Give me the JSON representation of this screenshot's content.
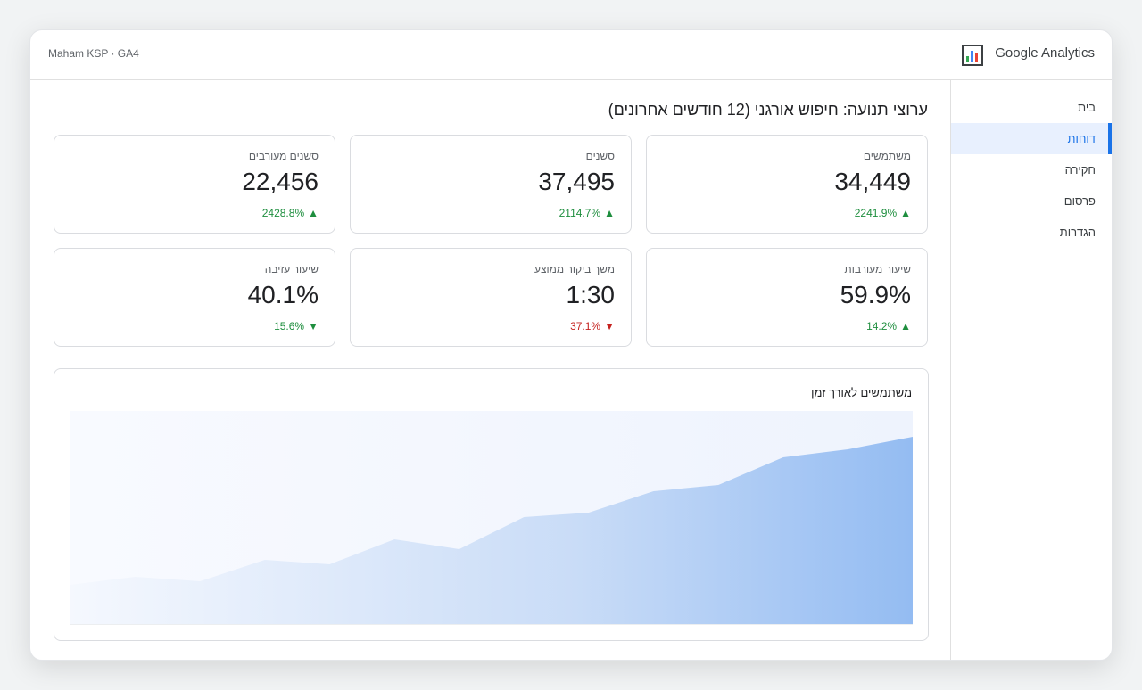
{
  "header": {
    "account": "Maham KSP · GA4",
    "product": "Google Analytics"
  },
  "nav": {
    "items": [
      "בית",
      "דוחות",
      "חקירה",
      "פרסום",
      "הגדרות"
    ],
    "active": 1
  },
  "page_title": "ערוצי תנועה: חיפוש אורגני (12 חודשים אחרונים)",
  "metrics": [
    {
      "label": "משתמשים",
      "value": "34,449",
      "change": "2241.9%",
      "arrow": "▲",
      "trend": "up"
    },
    {
      "label": "סשנים",
      "value": "37,495",
      "change": "2114.7%",
      "arrow": "▲",
      "trend": "up"
    },
    {
      "label": "סשנים מעורבים",
      "value": "22,456",
      "change": "2428.8%",
      "arrow": "▲",
      "trend": "up"
    },
    {
      "label": "שיעור מעורבות",
      "value": "59.9%",
      "change": "14.2%",
      "arrow": "▲",
      "trend": "up"
    },
    {
      "label": "משך ביקור ממוצע",
      "value": "1:30",
      "change": "37.1%",
      "arrow": "▼",
      "trend": "down"
    },
    {
      "label": "שיעור עזיבה",
      "value": "40.1%",
      "change": "15.6%",
      "arrow": "▼",
      "trend": "up"
    }
  ],
  "chart_data": {
    "type": "area",
    "title": "משתמשים לאורך זמן",
    "values": [
      44,
      53,
      48,
      72,
      67,
      95,
      84,
      120,
      125,
      149,
      156,
      187,
      196,
      210
    ],
    "ylim": [
      0,
      239
    ],
    "color": "#94bcf2"
  }
}
